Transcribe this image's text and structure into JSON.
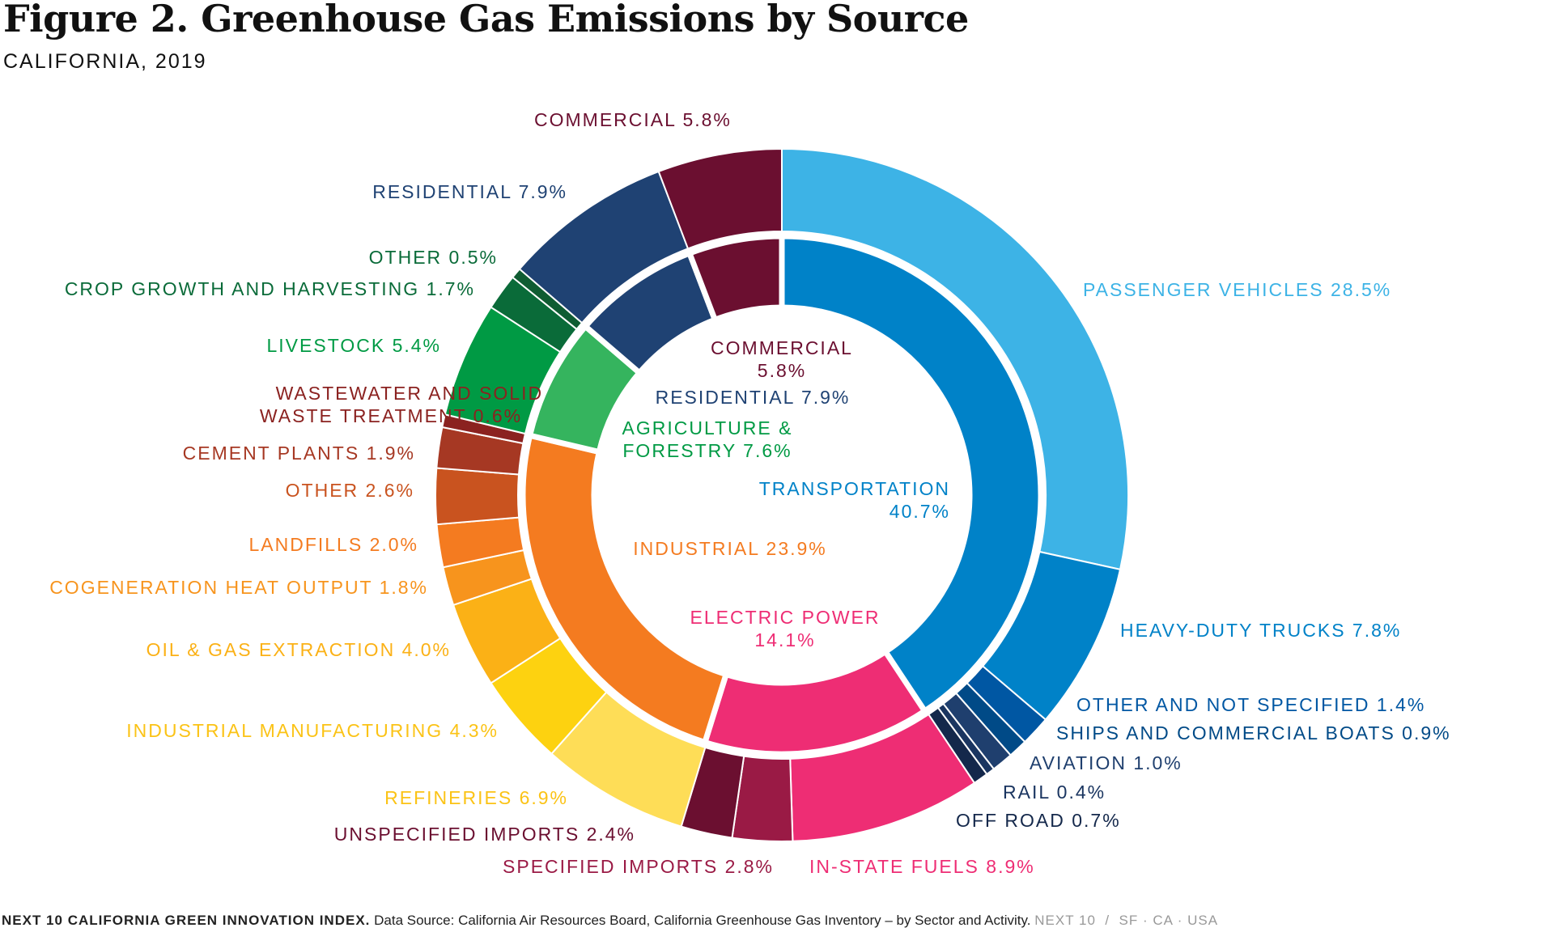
{
  "title": "Figure 2. Greenhouse Gas Emissions by Source",
  "subtitle": "CALIFORNIA, 2019",
  "footer": {
    "org": "NEXT 10 CALIFORNIA GREEN INNOVATION INDEX.",
    "source": "Data Source: California Air Resources Board, California Greenhouse Gas Inventory – by Sector and Activity.",
    "brand": "NEXT 10  /  SF · CA · USA"
  },
  "chart_data": {
    "type": "pie",
    "subtype": "nested-donut",
    "title": "Figure 2. Greenhouse Gas Emissions by Source",
    "unit": "%",
    "start": "12 o'clock, clockwise",
    "inner": [
      {
        "name": "TRANSPORTATION",
        "value": 40.7,
        "label1": "TRANSPORTATION",
        "label2": "40.7%",
        "color": "#0082c8"
      },
      {
        "name": "ELECTRIC POWER",
        "value": 14.1,
        "label1": "ELECTRIC POWER",
        "label2": "14.1%",
        "color": "#ee2d74"
      },
      {
        "name": "INDUSTRIAL",
        "value": 23.9,
        "label1": "INDUSTRIAL 23.9%",
        "color": "#f47b20"
      },
      {
        "name": "AGRICULTURE & FORESTRY",
        "value": 7.6,
        "label1": "AGRICULTURE &",
        "label2": "FORESTRY 7.6%",
        "color": "#35b45e"
      },
      {
        "name": "RESIDENTIAL",
        "value": 7.9,
        "label1": "RESIDENTIAL 7.9%",
        "color": "#1f4273"
      },
      {
        "name": "COMMERCIAL",
        "value": 5.8,
        "label1": "COMMERCIAL",
        "label2": "5.8%",
        "color": "#6b0f30"
      }
    ],
    "outer": [
      {
        "name": "PASSENGER VEHICLES",
        "value": 28.5,
        "label": "PASSENGER VEHICLES 28.5%",
        "color": "#3db3e6"
      },
      {
        "name": "HEAVY-DUTY TRUCKS",
        "value": 7.8,
        "label": "HEAVY-DUTY TRUCKS 7.8%",
        "color": "#0082c8"
      },
      {
        "name": "OTHER AND NOT SPECIFIED",
        "value": 1.4,
        "label": "OTHER AND NOT SPECIFIED 1.4%",
        "color": "#0057a3"
      },
      {
        "name": "SHIPS AND COMMERCIAL BOATS",
        "value": 0.9,
        "label": "SHIPS AND COMMERCIAL BOATS 0.9%",
        "color": "#004a87"
      },
      {
        "name": "AVIATION",
        "value": 1.0,
        "label": "AVIATION 1.0%",
        "color": "#1f3f6e"
      },
      {
        "name": "RAIL",
        "value": 0.4,
        "label": "RAIL 0.4%",
        "color": "#1a3560"
      },
      {
        "name": "OFF ROAD",
        "value": 0.7,
        "label": "OFF ROAD 0.7%",
        "color": "#14284b"
      },
      {
        "name": "IN-STATE FUELS",
        "value": 8.9,
        "label": "IN-STATE FUELS 8.9%",
        "color": "#ee2d74"
      },
      {
        "name": "SPECIFIED IMPORTS",
        "value": 2.8,
        "label": "SPECIFIED IMPORTS 2.8%",
        "color": "#9a1a45"
      },
      {
        "name": "UNSPECIFIED IMPORTS",
        "value": 2.4,
        "label": "UNSPECIFIED IMPORTS 2.4%",
        "color": "#6b0f30"
      },
      {
        "name": "REFINERIES",
        "value": 6.9,
        "label": "REFINERIES 6.9%",
        "color": "#fedd57"
      },
      {
        "name": "INDUSTRIAL MANUFACTURING",
        "value": 4.3,
        "label": "INDUSTRIAL MANUFACTURING 4.3%",
        "color": "#fdd210"
      },
      {
        "name": "OIL & GAS EXTRACTION",
        "value": 4.0,
        "label": "OIL & GAS EXTRACTION 4.0%",
        "color": "#fbb116"
      },
      {
        "name": "COGENERATION HEAT OUTPUT",
        "value": 1.8,
        "label": "COGENERATION HEAT OUTPUT 1.8%",
        "color": "#f7941d"
      },
      {
        "name": "LANDFILLS",
        "value": 2.0,
        "label": "LANDFILLS 2.0%",
        "color": "#f47b20"
      },
      {
        "name": "OTHER (INDUSTRIAL)",
        "value": 2.6,
        "label": "OTHER 2.6%",
        "color": "#c9531f"
      },
      {
        "name": "CEMENT PLANTS",
        "value": 1.9,
        "label": "CEMENT PLANTS 1.9%",
        "color": "#a63823"
      },
      {
        "name": "WASTEWATER AND SOLID WASTE TREATMENT",
        "value": 0.6,
        "label": "WASTEWATER AND SOLID",
        "label2": "WASTE TREATMENT 0.6%",
        "color": "#8b2220"
      },
      {
        "name": "LIVESTOCK",
        "value": 5.4,
        "label": "LIVESTOCK 5.4%",
        "color": "#009a44"
      },
      {
        "name": "CROP GROWTH AND HARVESTING",
        "value": 1.7,
        "label": "CROP GROWTH AND HARVESTING 1.7%",
        "color": "#0a6b39"
      },
      {
        "name": "OTHER (AGRICULTURE)",
        "value": 0.5,
        "label": "OTHER 0.5%",
        "color": "#0f5c32"
      },
      {
        "name": "RESIDENTIAL",
        "value": 7.9,
        "label": "RESIDENTIAL 7.9%",
        "color": "#1f4273"
      },
      {
        "name": "COMMERCIAL",
        "value": 5.8,
        "label": "COMMERCIAL 5.8%",
        "color": "#6b0f30"
      }
    ]
  }
}
